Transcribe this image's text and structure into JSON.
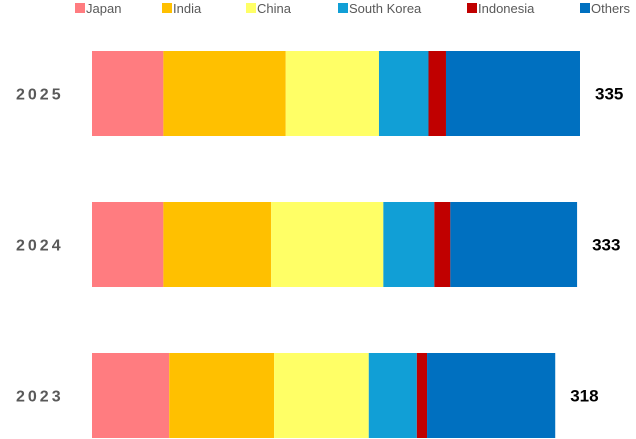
{
  "chart_data": {
    "type": "bar",
    "orientation": "horizontal",
    "stacked": true,
    "legend_position": "top",
    "grid": false,
    "categories": [
      "2025",
      "2024",
      "2023"
    ],
    "totals": [
      "335",
      "333",
      "318"
    ],
    "series": [
      {
        "name": "Japan",
        "color": "#FF7C80",
        "values": [
          49,
          49,
          53
        ]
      },
      {
        "name": "India",
        "color": "#FFC000",
        "values": [
          84,
          74,
          72
        ]
      },
      {
        "name": "China",
        "color": "#FFFF66",
        "values": [
          64,
          77,
          65
        ]
      },
      {
        "name": "South Korea",
        "color": "#119FD6",
        "values": [
          34,
          35,
          33
        ]
      },
      {
        "name": "Indonesia",
        "color": "#C00000",
        "values": [
          12,
          11,
          7
        ]
      },
      {
        "name": "Others",
        "color": "#0070C0",
        "values": [
          92,
          87,
          88
        ]
      }
    ]
  }
}
